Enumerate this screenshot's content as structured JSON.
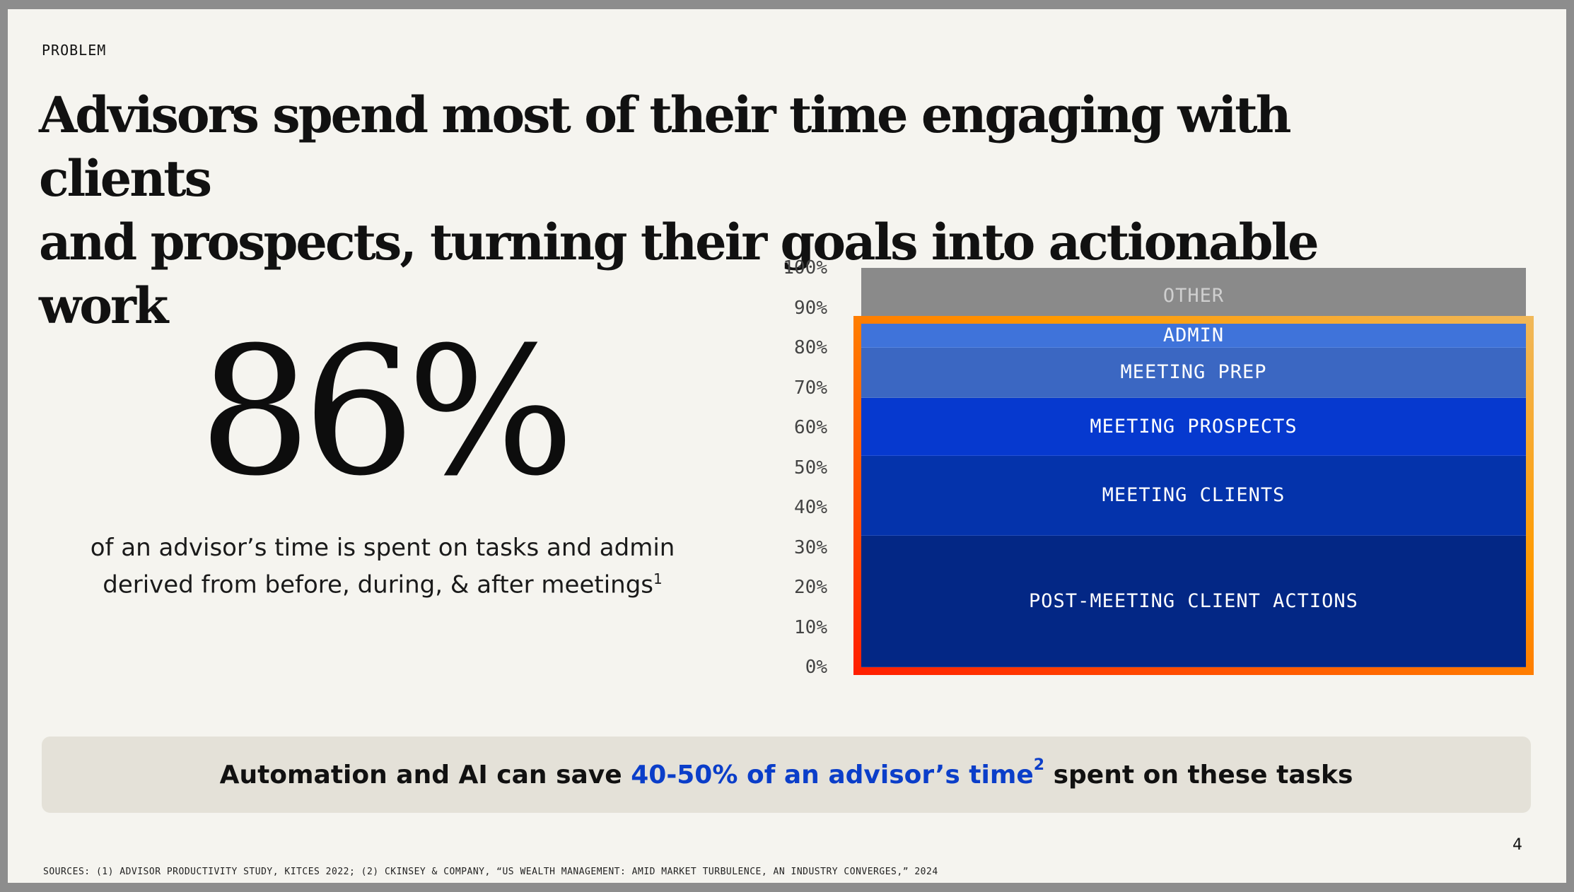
{
  "slide": {
    "eyebrow": "PROBLEM",
    "headline_line1": "Advisors spend most of their time engaging with clients",
    "headline_line2": "and prospects, turning their goals into actionable work",
    "big_stat": "86%",
    "stat_caption_line1": "of an advisor’s time is spent on tasks and admin",
    "stat_caption_line2": "derived from before, during, & after meetings",
    "stat_caption_sup": "1",
    "callout_pre": "Automation and AI can save ",
    "callout_highlight": "40-50% of an advisor’s time",
    "callout_sup": "2",
    "callout_post": " spent on these tasks",
    "highlight_color": "#0b3ec9",
    "page_number": "4",
    "sources": "SOURCES: (1) ADVISOR PRODUCTIVITY STUDY, KITCES 2022; (2) CKINSEY & COMPANY, “US WEALTH MANAGEMENT: AMID MARKET TURBULENCE, AN INDUSTRY CONVERGES,” 2024"
  },
  "chart_data": {
    "type": "bar",
    "stacked": true,
    "ylim": [
      0,
      100
    ],
    "y_ticks": [
      "0%",
      "10%",
      "20%",
      "30%",
      "40%",
      "50%",
      "60%",
      "70%",
      "80%",
      "90%",
      "100%"
    ],
    "series": [
      {
        "name": "POST-MEETING CLIENT ACTIONS",
        "value": 33,
        "color": "#032785"
      },
      {
        "name": "MEETING CLIENTS",
        "value": 20,
        "color": "#0433ab"
      },
      {
        "name": "MEETING PROSPECTS",
        "value": 14.5,
        "color": "#0639cf"
      },
      {
        "name": "MEETING PREP",
        "value": 12.5,
        "color": "#3b67c2"
      },
      {
        "name": "ADMIN",
        "value": 6,
        "color": "#3f73da"
      },
      {
        "name": "OTHER",
        "value": 14,
        "color": "#8a8a8a",
        "text_color": "#cfcfcf"
      }
    ],
    "highlight_range": [
      0,
      86
    ],
    "highlight_colors": [
      "#ff1e00",
      "#ff9a00",
      "#f0b85a"
    ]
  }
}
